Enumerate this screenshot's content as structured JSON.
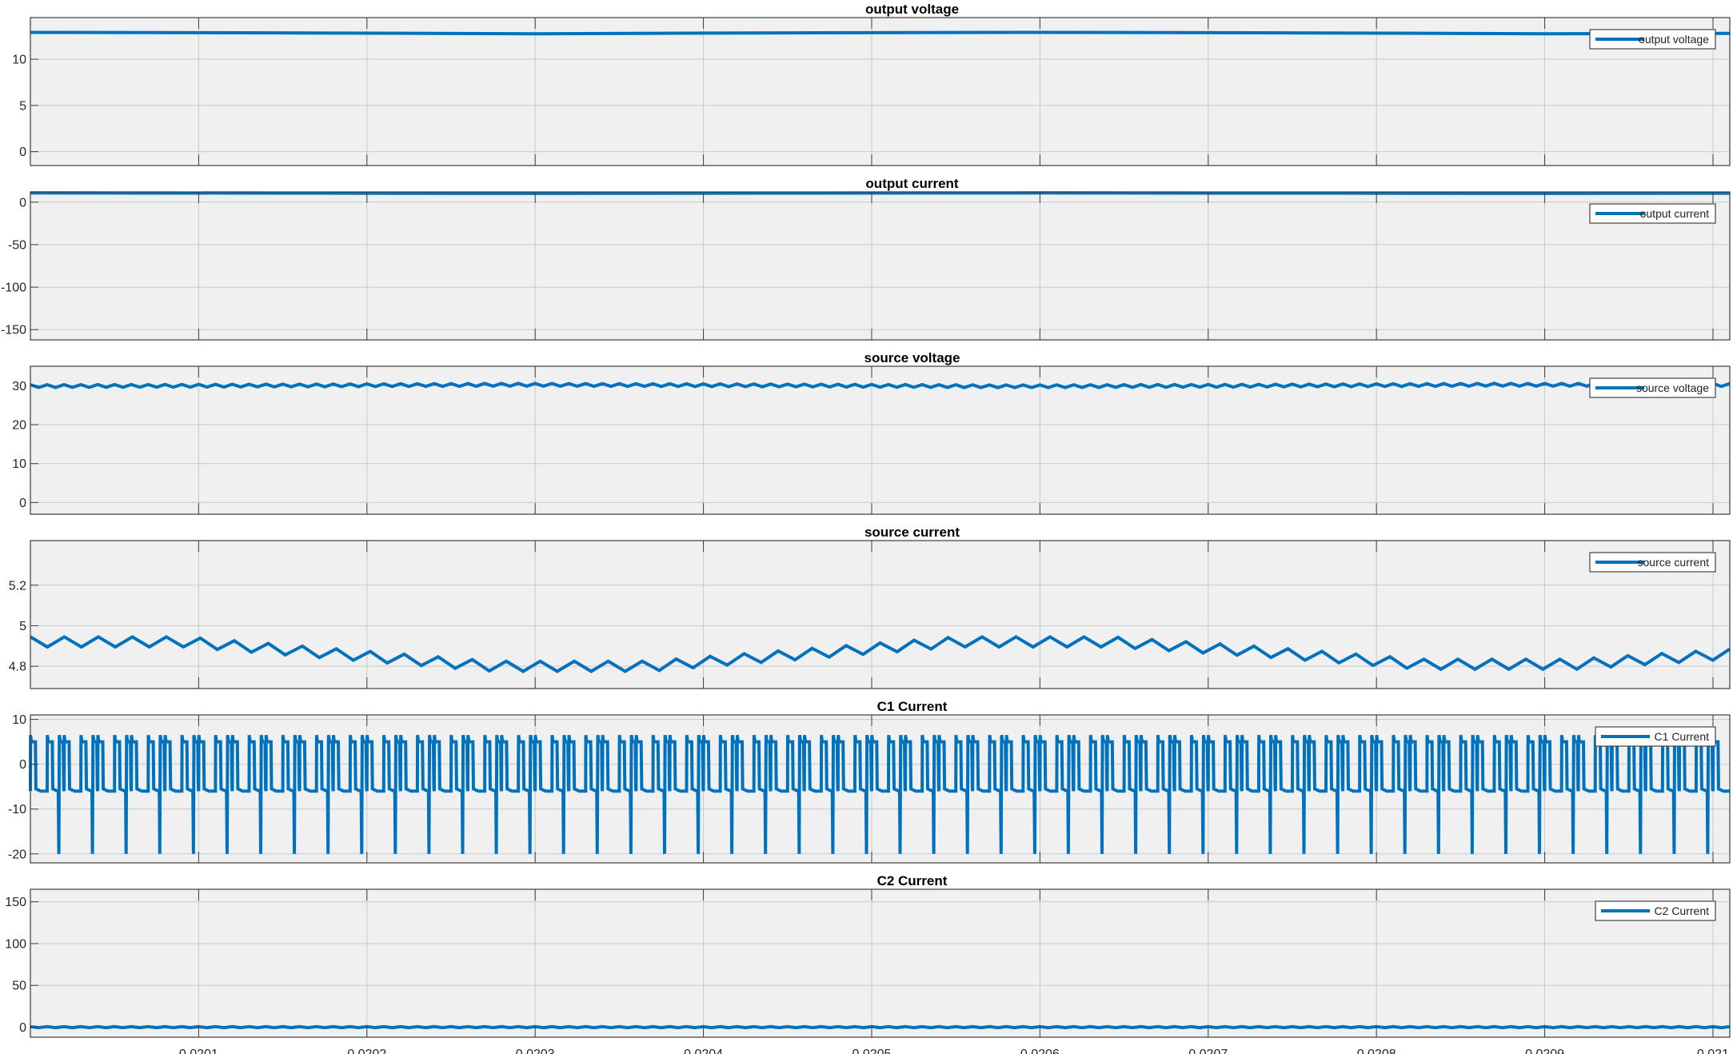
{
  "chart_data": [
    {
      "type": "line",
      "title": "output voltage",
      "xlim": [
        0.02,
        0.02101
      ],
      "ylim": [
        -1.5,
        14.5
      ],
      "yticks": [
        0,
        5,
        10
      ],
      "grid": true,
      "legend_position": "top-right",
      "series": [
        {
          "name": "output voltage",
          "color": "#0072BD",
          "x": [
            0.02,
            0.02015,
            0.0203,
            0.02045,
            0.0206,
            0.02075,
            0.0209,
            0.02101
          ],
          "y": [
            12.9,
            12.85,
            12.75,
            12.85,
            12.9,
            12.85,
            12.75,
            12.8
          ]
        }
      ]
    },
    {
      "type": "line",
      "title": "output current",
      "xlim": [
        0.02,
        0.02101
      ],
      "ylim": [
        -162,
        12
      ],
      "yticks": [
        -150,
        -100,
        -50,
        0
      ],
      "grid": true,
      "legend_position": "top-right",
      "series": [
        {
          "name": "output current",
          "color": "#0072BD",
          "x": [
            0.02,
            0.02015,
            0.0203,
            0.02045,
            0.0206,
            0.02075,
            0.0209,
            0.02101
          ],
          "y": [
            10.8,
            10.6,
            10.2,
            10.6,
            10.8,
            10.6,
            10.2,
            10.5
          ]
        }
      ]
    },
    {
      "type": "line",
      "title": "source voltage",
      "xlim": [
        0.02,
        0.02101
      ],
      "ylim": [
        -3,
        35
      ],
      "yticks": [
        0,
        10,
        20,
        30
      ],
      "grid": true,
      "legend_position": "top-right",
      "series": [
        {
          "name": "source voltage",
          "color": "#0072BD",
          "x_start": 0.02,
          "x_end": 0.02101,
          "periods": 101,
          "baseline": [
            29.9,
            30.05,
            30.25,
            30.1,
            29.85,
            30.0,
            30.25,
            30.2
          ],
          "ripple_pp": 0.7
        }
      ]
    },
    {
      "type": "line",
      "title": "source current",
      "xlim": [
        0.02,
        0.02101
      ],
      "ylim": [
        4.69,
        5.42
      ],
      "yticks": [
        4.8,
        5,
        5.2
      ],
      "grid": true,
      "legend_position": "top-right",
      "series": [
        {
          "name": "source current",
          "color": "#0072BD",
          "x_start": 0.02,
          "x_end": 0.02101,
          "periods": 50,
          "baseline": [
            4.92,
            4.92,
            4.86,
            4.8,
            4.8,
            4.86,
            4.92,
            4.92,
            4.87,
            4.81,
            4.81,
            4.86
          ],
          "ripple_pp": 0.05
        }
      ]
    },
    {
      "type": "line",
      "title": "C1 Current",
      "xlim": [
        0.02,
        0.02101
      ],
      "ylim": [
        -22,
        11
      ],
      "yticks": [
        -20,
        -10,
        0,
        10
      ],
      "grid": true,
      "legend_position": "top-right",
      "series": [
        {
          "name": "C1 Current",
          "color": "#0072BD",
          "x_start": 0.02,
          "x_end": 0.02101,
          "periods": 101,
          "high": 6.5,
          "high_end": 5.0,
          "low": -5.5,
          "low_end": -6.0,
          "spike": -20
        }
      ]
    },
    {
      "type": "line",
      "title": "C2 Current",
      "xlim": [
        0.02,
        0.02101
      ],
      "ylim": [
        -12,
        165
      ],
      "yticks": [
        0,
        50,
        100,
        150
      ],
      "grid": true,
      "legend_position": "top-right",
      "series": [
        {
          "name": "C2 Current",
          "color": "#0072BD",
          "x_start": 0.02,
          "x_end": 0.02101,
          "periods": 101,
          "baseline": [
            0,
            0
          ],
          "ripple_pp": 1.2
        }
      ]
    }
  ],
  "x_axis": {
    "ticks": [
      0.0201,
      0.0202,
      0.0203,
      0.0204,
      0.0205,
      0.0206,
      0.0207,
      0.0208,
      0.0209,
      0.021
    ],
    "tick_labels": [
      "0.0201",
      "0.0202",
      "0.0203",
      "0.0204",
      "0.0205",
      "0.0206",
      "0.0207",
      "0.0208",
      "0.0209",
      "0.021"
    ]
  },
  "style": {
    "axes_background": "#f0f0f0",
    "grid_color": "#c8c8c8",
    "line_color": "#0072BD",
    "border_color": "#3c3c3c"
  }
}
